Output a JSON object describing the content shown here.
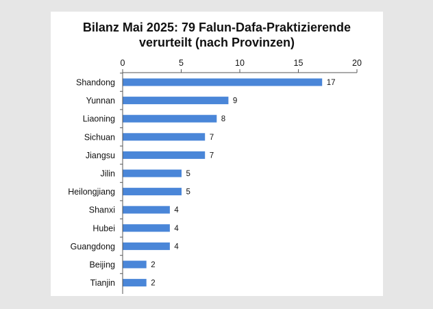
{
  "chart_data": {
    "type": "bar",
    "orientation": "horizontal",
    "title": [
      "Bilanz Mai 2025: 79 Falun-Dafa-Praktizierende",
      "verurteilt  (nach Provinzen)"
    ],
    "categories": [
      "Shandong",
      "Yunnan",
      "Liaoning",
      "Sichuan",
      "Jiangsu",
      "Jilin",
      "Heilongjiang",
      "Shanxi",
      "Hubei",
      "Guangdong",
      "Beijing",
      "Tianjin"
    ],
    "values": [
      17,
      9,
      8,
      7,
      7,
      5,
      5,
      4,
      4,
      4,
      2,
      2
    ],
    "xlim": [
      0,
      20
    ],
    "xticks": [
      0,
      5,
      10,
      15,
      20
    ],
    "axis_position": "top",
    "grid": false,
    "data_labels": true,
    "bar_color": "#4a86d8"
  }
}
